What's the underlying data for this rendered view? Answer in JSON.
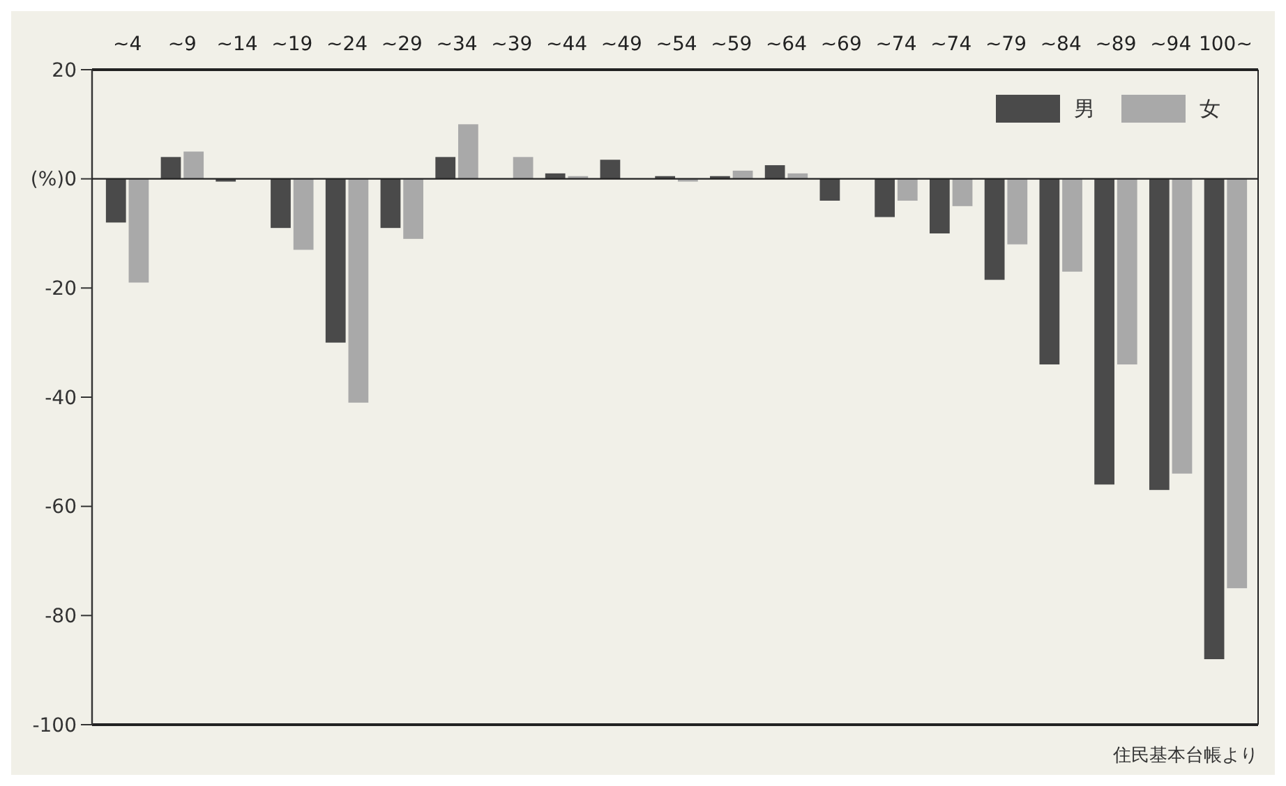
{
  "chart_data": {
    "type": "bar",
    "categories": [
      "~4",
      "~9",
      "~14",
      "~19",
      "~24",
      "~29",
      "~34",
      "~39",
      "~44",
      "~49",
      "~54",
      "~59",
      "~64",
      "~69",
      "~74",
      "~74",
      "~79",
      "~84",
      "~89",
      "~94",
      "100~"
    ],
    "series": [
      {
        "name": "男",
        "color": "#4a4a4a",
        "values": [
          -8,
          4,
          -0.5,
          -9,
          -30,
          -9,
          4,
          0,
          1,
          3.5,
          0.5,
          0.5,
          2.5,
          -4,
          -7,
          -10,
          -18.5,
          -34,
          -56,
          -57,
          -88
        ]
      },
      {
        "name": "女",
        "color": "#a9a9a9",
        "values": [
          -19,
          5,
          0,
          -13,
          -41,
          -11,
          10,
          4,
          0.5,
          0,
          -0.5,
          1.5,
          1,
          0,
          -4,
          -5,
          -12,
          -17,
          -34,
          -54,
          -75
        ]
      }
    ],
    "ylim": [
      -100,
      20
    ],
    "yticks": [
      -100,
      -80,
      -60,
      -40,
      -20,
      {
        "value": 0,
        "label": "(%)0"
      },
      20
    ],
    "legend": "top right",
    "annotations": [
      "住民基本台帳より"
    ]
  }
}
